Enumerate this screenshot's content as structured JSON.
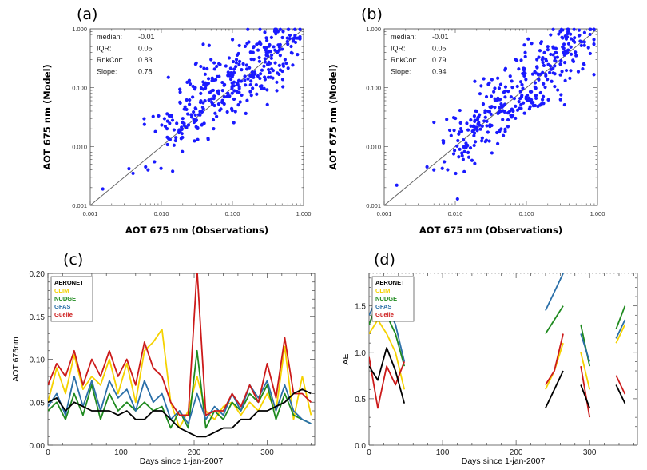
{
  "colors": {
    "scatter": "#1a1aff",
    "AERONET": "#000000",
    "CLIM": "#f5d200",
    "NUDGE": "#1f8a1f",
    "GFAS": "#2a6fa8",
    "Guelle": "#cc1a1a"
  },
  "chart_data": [
    {
      "id": "a",
      "type": "scatter",
      "panel_label": "(a)",
      "xlabel": "AOT  675 nm (Observations)",
      "ylabel": "AOT  675 nm (Model)",
      "xscale": "log",
      "yscale": "log",
      "xlim": [
        0.001,
        1.0
      ],
      "ylim": [
        0.001,
        1.0
      ],
      "x_ticks": [
        "0.001",
        "0.010",
        "0.100",
        "1.000"
      ],
      "y_ticks": [
        "0.001",
        "0.010",
        "0.100",
        "1.000"
      ],
      "stats": [
        {
          "label": "median:",
          "value": "-0.01"
        },
        {
          "label": "IQR:",
          "value": "0.05"
        },
        {
          "label": "RnkCor:",
          "value": "0.83"
        },
        {
          "label": "Slope:",
          "value": "0.78"
        }
      ],
      "seed": 11,
      "n_points": 340,
      "slope": 0.78,
      "offset": -0.55,
      "spread": 0.32,
      "points": [
        [
          0.0015,
          0.0019
        ],
        [
          0.0035,
          0.0042
        ],
        [
          0.004,
          0.0035
        ],
        [
          0.006,
          0.0045
        ],
        [
          0.0065,
          0.004
        ],
        [
          0.008,
          0.0055
        ],
        [
          0.012,
          0.02
        ],
        [
          0.02,
          0.03
        ],
        [
          0.03,
          0.1
        ],
        [
          0.05,
          0.3
        ],
        [
          0.09,
          0.32
        ],
        [
          0.2,
          0.5
        ],
        [
          0.3,
          0.7
        ],
        [
          0.5,
          0.45
        ],
        [
          0.6,
          0.55
        ],
        [
          0.55,
          0.3
        ],
        [
          0.32,
          0.15
        ]
      ]
    },
    {
      "id": "b",
      "type": "scatter",
      "panel_label": "(b)",
      "xlabel": "AOT  675 nm (Observations)",
      "ylabel": "AOT  675 nm (Model)",
      "xscale": "log",
      "yscale": "log",
      "xlim": [
        0.001,
        1.0
      ],
      "ylim": [
        0.001,
        1.0
      ],
      "x_ticks": [
        "0.001",
        "0.010",
        "0.100",
        "1.000"
      ],
      "y_ticks": [
        "0.001",
        "0.010",
        "0.100",
        "1.000"
      ],
      "stats": [
        {
          "label": "median:",
          "value": "-0.01"
        },
        {
          "label": "IQR:",
          "value": "0.05"
        },
        {
          "label": "RnkCor:",
          "value": "0.79"
        },
        {
          "label": "Slope:",
          "value": "0.94"
        }
      ],
      "seed": 29,
      "n_points": 340,
      "slope": 0.94,
      "offset": -0.35,
      "spread": 0.33,
      "points": [
        [
          0.0015,
          0.0022
        ],
        [
          0.004,
          0.0045
        ],
        [
          0.005,
          0.004
        ],
        [
          0.007,
          0.0055
        ],
        [
          0.0095,
          0.0075
        ],
        [
          0.012,
          0.02
        ],
        [
          0.02,
          0.04
        ],
        [
          0.03,
          0.12
        ],
        [
          0.05,
          0.2
        ],
        [
          0.2,
          0.5
        ],
        [
          0.3,
          0.9
        ],
        [
          0.55,
          0.95
        ],
        [
          0.6,
          0.6
        ],
        [
          0.5,
          0.35
        ]
      ]
    },
    {
      "id": "c",
      "type": "line",
      "panel_label": "(c)",
      "xlabel": "Days since 1-jan-2007",
      "ylabel": "AOT 675nm",
      "xlim": [
        0,
        365
      ],
      "ylim": [
        0,
        0.2
      ],
      "x_ticks": [
        "0",
        "100",
        "200",
        "300"
      ],
      "y_ticks": [
        "0.00",
        "0.05",
        "0.10",
        "0.15",
        "0.20"
      ],
      "legend": [
        "AERONET",
        "CLIM",
        "NUDGE",
        "GFAS",
        "Guelle"
      ],
      "x": [
        0,
        12,
        24,
        36,
        48,
        60,
        72,
        84,
        96,
        108,
        120,
        132,
        144,
        156,
        168,
        180,
        192,
        204,
        216,
        228,
        240,
        252,
        264,
        276,
        288,
        300,
        312,
        324,
        336,
        348,
        360
      ],
      "series": [
        {
          "name": "AERONET",
          "values": [
            0.05,
            0.055,
            0.04,
            0.05,
            0.045,
            0.04,
            0.04,
            0.04,
            0.035,
            0.04,
            0.03,
            0.03,
            0.04,
            0.04,
            0.03,
            0.02,
            0.015,
            0.01,
            0.01,
            0.015,
            0.02,
            0.02,
            0.03,
            0.03,
            0.04,
            0.04,
            0.045,
            0.05,
            0.06,
            0.065,
            0.06
          ]
        },
        {
          "name": "CLIM",
          "values": [
            0.05,
            0.09,
            0.06,
            0.105,
            0.065,
            0.08,
            0.07,
            0.1,
            0.06,
            0.095,
            0.05,
            0.11,
            0.12,
            0.135,
            0.05,
            0.02,
            0.04,
            0.08,
            0.04,
            0.03,
            0.045,
            0.05,
            0.035,
            0.05,
            0.04,
            0.06,
            0.04,
            0.115,
            0.03,
            0.08,
            0.035
          ]
        },
        {
          "name": "NUDGE",
          "values": [
            0.04,
            0.05,
            0.03,
            0.06,
            0.035,
            0.07,
            0.03,
            0.06,
            0.04,
            0.05,
            0.04,
            0.05,
            0.04,
            0.045,
            0.02,
            0.04,
            0.02,
            0.11,
            0.02,
            0.04,
            0.03,
            0.05,
            0.04,
            0.06,
            0.05,
            0.07,
            0.03,
            0.06,
            0.035,
            0.03,
            0.025
          ]
        },
        {
          "name": "GFAS",
          "values": [
            0.045,
            0.06,
            0.035,
            0.08,
            0.045,
            0.075,
            0.04,
            0.075,
            0.055,
            0.065,
            0.04,
            0.075,
            0.05,
            0.06,
            0.03,
            0.04,
            0.025,
            0.06,
            0.03,
            0.045,
            0.035,
            0.06,
            0.04,
            0.07,
            0.055,
            0.075,
            0.04,
            0.07,
            0.04,
            0.03,
            0.025
          ]
        },
        {
          "name": "Guelle",
          "values": [
            0.07,
            0.095,
            0.08,
            0.11,
            0.07,
            0.1,
            0.08,
            0.11,
            0.08,
            0.1,
            0.07,
            0.12,
            0.09,
            0.08,
            0.05,
            0.035,
            0.035,
            0.205,
            0.035,
            0.04,
            0.04,
            0.06,
            0.045,
            0.07,
            0.05,
            0.095,
            0.055,
            0.125,
            0.06,
            0.06,
            0.05
          ]
        }
      ]
    },
    {
      "id": "d",
      "type": "line",
      "panel_label": "(d)",
      "xlabel": "Days since 1-jan-2007",
      "ylabel": "AE",
      "xlim": [
        0,
        365
      ],
      "ylim": [
        0,
        1.85
      ],
      "x_ticks": [
        "0",
        "100",
        "200",
        "300"
      ],
      "y_ticks": [
        "0.0",
        "0.5",
        "1.0",
        "1.5"
      ],
      "legend": [
        "AERONET",
        "CLIM",
        "NUDGE",
        "GFAS",
        "Guelle"
      ],
      "x": [
        0,
        12,
        24,
        36,
        48,
        60,
        72,
        84,
        96,
        108,
        120,
        132,
        144,
        156,
        168,
        180,
        192,
        204,
        216,
        228,
        240,
        252,
        264,
        276,
        288,
        300,
        312,
        324,
        336,
        348,
        360
      ],
      "series": [
        {
          "name": "AERONET",
          "values": [
            0.85,
            0.7,
            1.05,
            0.8,
            0.45,
            null,
            null,
            null,
            null,
            null,
            null,
            null,
            null,
            null,
            null,
            null,
            null,
            null,
            null,
            null,
            0.4,
            0.6,
            0.8,
            null,
            0.65,
            0.4,
            null,
            null,
            0.65,
            0.45,
            null
          ]
        },
        {
          "name": "CLIM",
          "values": [
            1.2,
            1.35,
            1.2,
            1.0,
            0.6,
            null,
            null,
            null,
            null,
            null,
            null,
            null,
            null,
            null,
            null,
            null,
            null,
            null,
            null,
            null,
            0.6,
            0.8,
            1.1,
            null,
            1.0,
            0.6,
            null,
            null,
            1.1,
            1.3,
            null
          ]
        },
        {
          "name": "NUDGE",
          "values": [
            1.3,
            1.55,
            1.4,
            1.2,
            0.85,
            null,
            null,
            null,
            null,
            null,
            null,
            null,
            null,
            null,
            null,
            null,
            null,
            null,
            null,
            null,
            1.2,
            1.35,
            1.5,
            null,
            1.3,
            0.85,
            null,
            null,
            1.25,
            1.5,
            null
          ]
        },
        {
          "name": "GFAS",
          "values": [
            1.4,
            1.6,
            1.5,
            1.3,
            0.9,
            null,
            null,
            null,
            null,
            null,
            null,
            null,
            null,
            null,
            null,
            null,
            null,
            null,
            null,
            null,
            1.45,
            1.65,
            1.85,
            null,
            1.2,
            0.9,
            null,
            null,
            1.15,
            1.35,
            null
          ]
        },
        {
          "name": "Guelle",
          "values": [
            0.95,
            0.4,
            0.85,
            0.65,
            0.9,
            null,
            null,
            null,
            null,
            null,
            null,
            null,
            null,
            null,
            null,
            null,
            null,
            null,
            null,
            null,
            0.65,
            0.8,
            1.2,
            null,
            0.85,
            0.3,
            null,
            null,
            0.75,
            0.55,
            null
          ]
        }
      ]
    }
  ]
}
